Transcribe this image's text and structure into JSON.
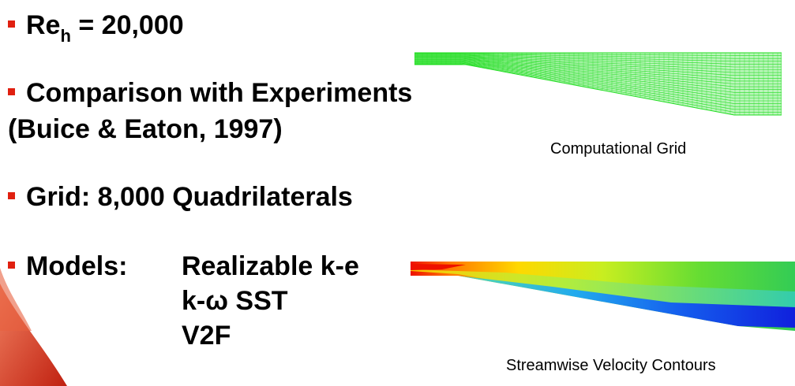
{
  "bullets": {
    "reynolds": {
      "label": "Re",
      "subscript": "h",
      "value": " = 20,000"
    },
    "comparison": {
      "line1": "Comparison with Experiments",
      "line2": "(Buice & Eaton, 1997)"
    },
    "grid": {
      "text": "Grid: 8,000 Quadrilaterals"
    },
    "models": {
      "label": "Models:",
      "items": [
        "Realizable k-e",
        "k-ω SST",
        "V2F"
      ]
    }
  },
  "figures": {
    "grid_caption": "Computational Grid",
    "velocity_caption": "Streamwise Velocity Contours"
  },
  "colors": {
    "bullet_marker": "#e02010",
    "grid_lines": "#22dd22",
    "velocity_high": "#ee1100",
    "velocity_low": "#1020dd"
  }
}
